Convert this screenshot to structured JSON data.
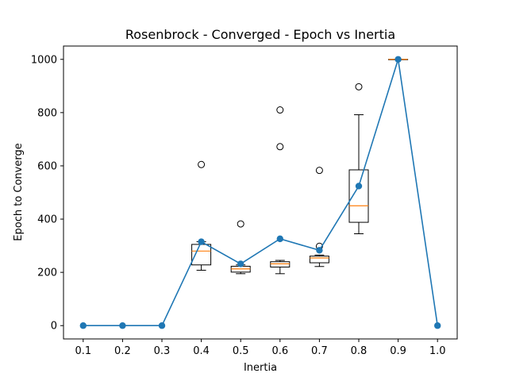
{
  "chart_data": {
    "type": "line",
    "title": "Rosenbrock - Converged - Epoch vs Inertia",
    "xlabel": "Inertia",
    "ylabel": "Epoch to Converge",
    "xlim": [
      0.05,
      1.05
    ],
    "ylim": [
      -50,
      1050
    ],
    "x_ticks": [
      "0.1",
      "0.2",
      "0.3",
      "0.4",
      "0.5",
      "0.6",
      "0.7",
      "0.8",
      "0.9",
      "1.0"
    ],
    "y_ticks": [
      "0",
      "200",
      "400",
      "600",
      "800",
      "1000"
    ],
    "grid": false,
    "line_color": "#1f77b4",
    "median_color": "#ff7f0e",
    "series": [
      {
        "x": [
          0.1,
          0.2,
          0.3,
          0.4,
          0.5,
          0.6,
          0.7,
          0.8,
          0.9,
          1.0
        ],
        "y": [
          0,
          0,
          0,
          315,
          232,
          326,
          283,
          524,
          1000,
          0
        ]
      }
    ],
    "boxplots": [
      {
        "x": 0.4,
        "whisker_low": 208,
        "q1": 228,
        "median": 280,
        "q3": 305,
        "whisker_high": 315,
        "outliers": [
          605
        ]
      },
      {
        "x": 0.5,
        "whisker_low": 195,
        "q1": 201,
        "median": 213,
        "q3": 223,
        "whisker_high": 228,
        "outliers": [
          382
        ]
      },
      {
        "x": 0.6,
        "whisker_low": 195,
        "q1": 220,
        "median": 232,
        "q3": 240,
        "whisker_high": 245,
        "outliers": [
          672,
          810
        ]
      },
      {
        "x": 0.7,
        "whisker_low": 222,
        "q1": 236,
        "median": 254,
        "q3": 261,
        "whisker_high": 265,
        "outliers": [
          298,
          583
        ]
      },
      {
        "x": 0.8,
        "whisker_low": 345,
        "q1": 388,
        "median": 450,
        "q3": 585,
        "whisker_high": 792,
        "outliers": [
          897
        ]
      },
      {
        "x": 0.9,
        "whisker_low": 1000,
        "q1": 1000,
        "median": 1000,
        "q3": 1000,
        "whisker_high": 1000,
        "outliers": []
      }
    ]
  }
}
